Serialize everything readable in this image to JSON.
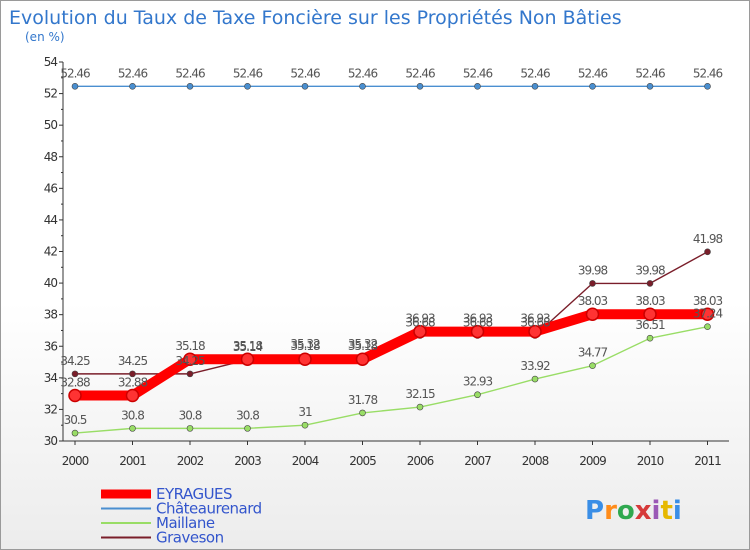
{
  "chart_data": {
    "type": "line",
    "title": "Evolution du Taux de Taxe Foncière sur les Propriétés Non Bâties",
    "subtitle": "(en %)",
    "x": [
      "2000",
      "2001",
      "2002",
      "2003",
      "2004",
      "2005",
      "2006",
      "2007",
      "2008",
      "2009",
      "2010",
      "2011"
    ],
    "ylim": [
      30,
      54
    ],
    "yticks": [
      30,
      32,
      34,
      36,
      38,
      40,
      42,
      44,
      46,
      48,
      50,
      52,
      54
    ],
    "series": [
      {
        "name": "EYRAGUES",
        "color": "#ff0000",
        "values": [
          32.88,
          32.88,
          35.18,
          35.18,
          35.18,
          35.18,
          36.93,
          36.93,
          36.93,
          38.03,
          38.03,
          38.03
        ],
        "labels": [
          "32.88",
          "32.88",
          "35.18",
          "35.18",
          "35.18",
          "35.18",
          "36.93",
          "36.93",
          "36.93",
          "38.03",
          "38.03",
          "38.03"
        ]
      },
      {
        "name": "Châteaurenard",
        "color": "#4a8fd0",
        "values": [
          52.46,
          52.46,
          52.46,
          52.46,
          52.46,
          52.46,
          52.46,
          52.46,
          52.46,
          52.46,
          52.46,
          52.46
        ],
        "labels": [
          "52.46",
          "52.46",
          "52.46",
          "52.46",
          "52.46",
          "52.46",
          "52.46",
          "52.46",
          "52.46",
          "52.46",
          "52.46",
          "52.46"
        ]
      },
      {
        "name": "Maillane",
        "color": "#99dd66",
        "values": [
          30.5,
          30.8,
          30.8,
          30.8,
          31,
          31.78,
          32.15,
          32.93,
          33.92,
          34.77,
          36.51,
          37.24
        ],
        "labels": [
          "30.5",
          "30.8",
          "30.8",
          "30.8",
          "31",
          "31.78",
          "32.15",
          "32.93",
          "33.92",
          "34.77",
          "36.51",
          "37.24"
        ]
      },
      {
        "name": "Graveson",
        "color": "#7a1e2a",
        "values": [
          34.25,
          34.25,
          34.25,
          35.14,
          35.32,
          35.32,
          36.68,
          36.68,
          36.68,
          39.98,
          39.98,
          41.98
        ],
        "labels": [
          "34.25",
          "34.25",
          "34.25",
          "35.14",
          "35.32",
          "35.32",
          "36.68",
          "36.68",
          "36.68",
          "39.98",
          "39.98",
          "41.98"
        ]
      }
    ]
  },
  "branding": {
    "logo_text": "Proxiti"
  },
  "colors": {
    "title": "#3377cc",
    "axis": "#333333",
    "legend_text": "#3355cc"
  }
}
